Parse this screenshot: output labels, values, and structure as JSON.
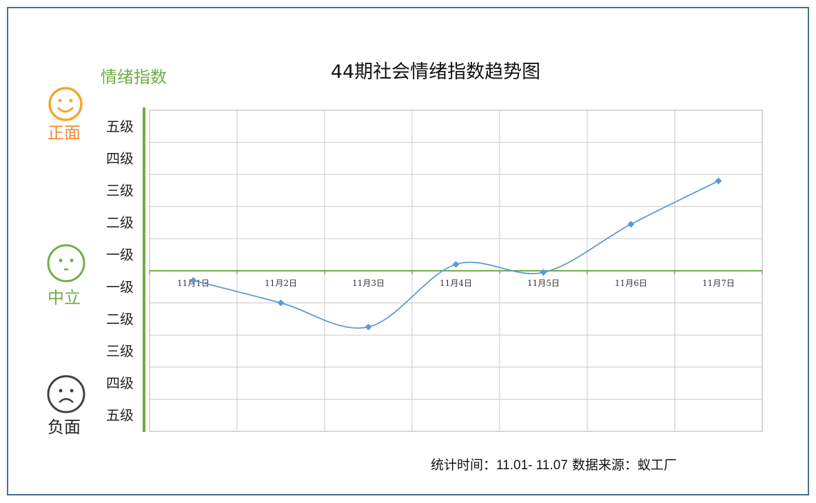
{
  "title": "44期社会情绪指数趋势图",
  "y_axis_title": "情绪指数",
  "faces": {
    "positive": "正面",
    "neutral": "中立",
    "negative": "负面"
  },
  "footer": {
    "time_label": "统计时间：",
    "time_value": "11.01- 11.07",
    "source_label": "数据来源：",
    "source_value": "蚁工厂"
  },
  "colors": {
    "positive": "#f0a830",
    "neutral": "#70ad47",
    "negative": "#404040",
    "line": "#5b9bd5",
    "axis": "#70ad47",
    "grid": "#c8c8c8"
  },
  "chart_data": {
    "type": "line",
    "title": "44期社会情绪指数趋势图",
    "ylabel": "情绪指数",
    "smooth": true,
    "categories": [
      "11月1日",
      "11月2日",
      "11月3日",
      "11月4日",
      "11月5日",
      "11月6日",
      "11月7日"
    ],
    "y_tick_labels": [
      "五级",
      "四级",
      "三级",
      "二级",
      "一级",
      "一级",
      "二级",
      "三级",
      "四级",
      "五级"
    ],
    "ylim": [
      -5,
      5
    ],
    "grid": true,
    "series": [
      {
        "values": [
          -0.3,
          -1.0,
          -1.75,
          0.2,
          -0.05,
          1.45,
          2.8
        ]
      }
    ]
  }
}
